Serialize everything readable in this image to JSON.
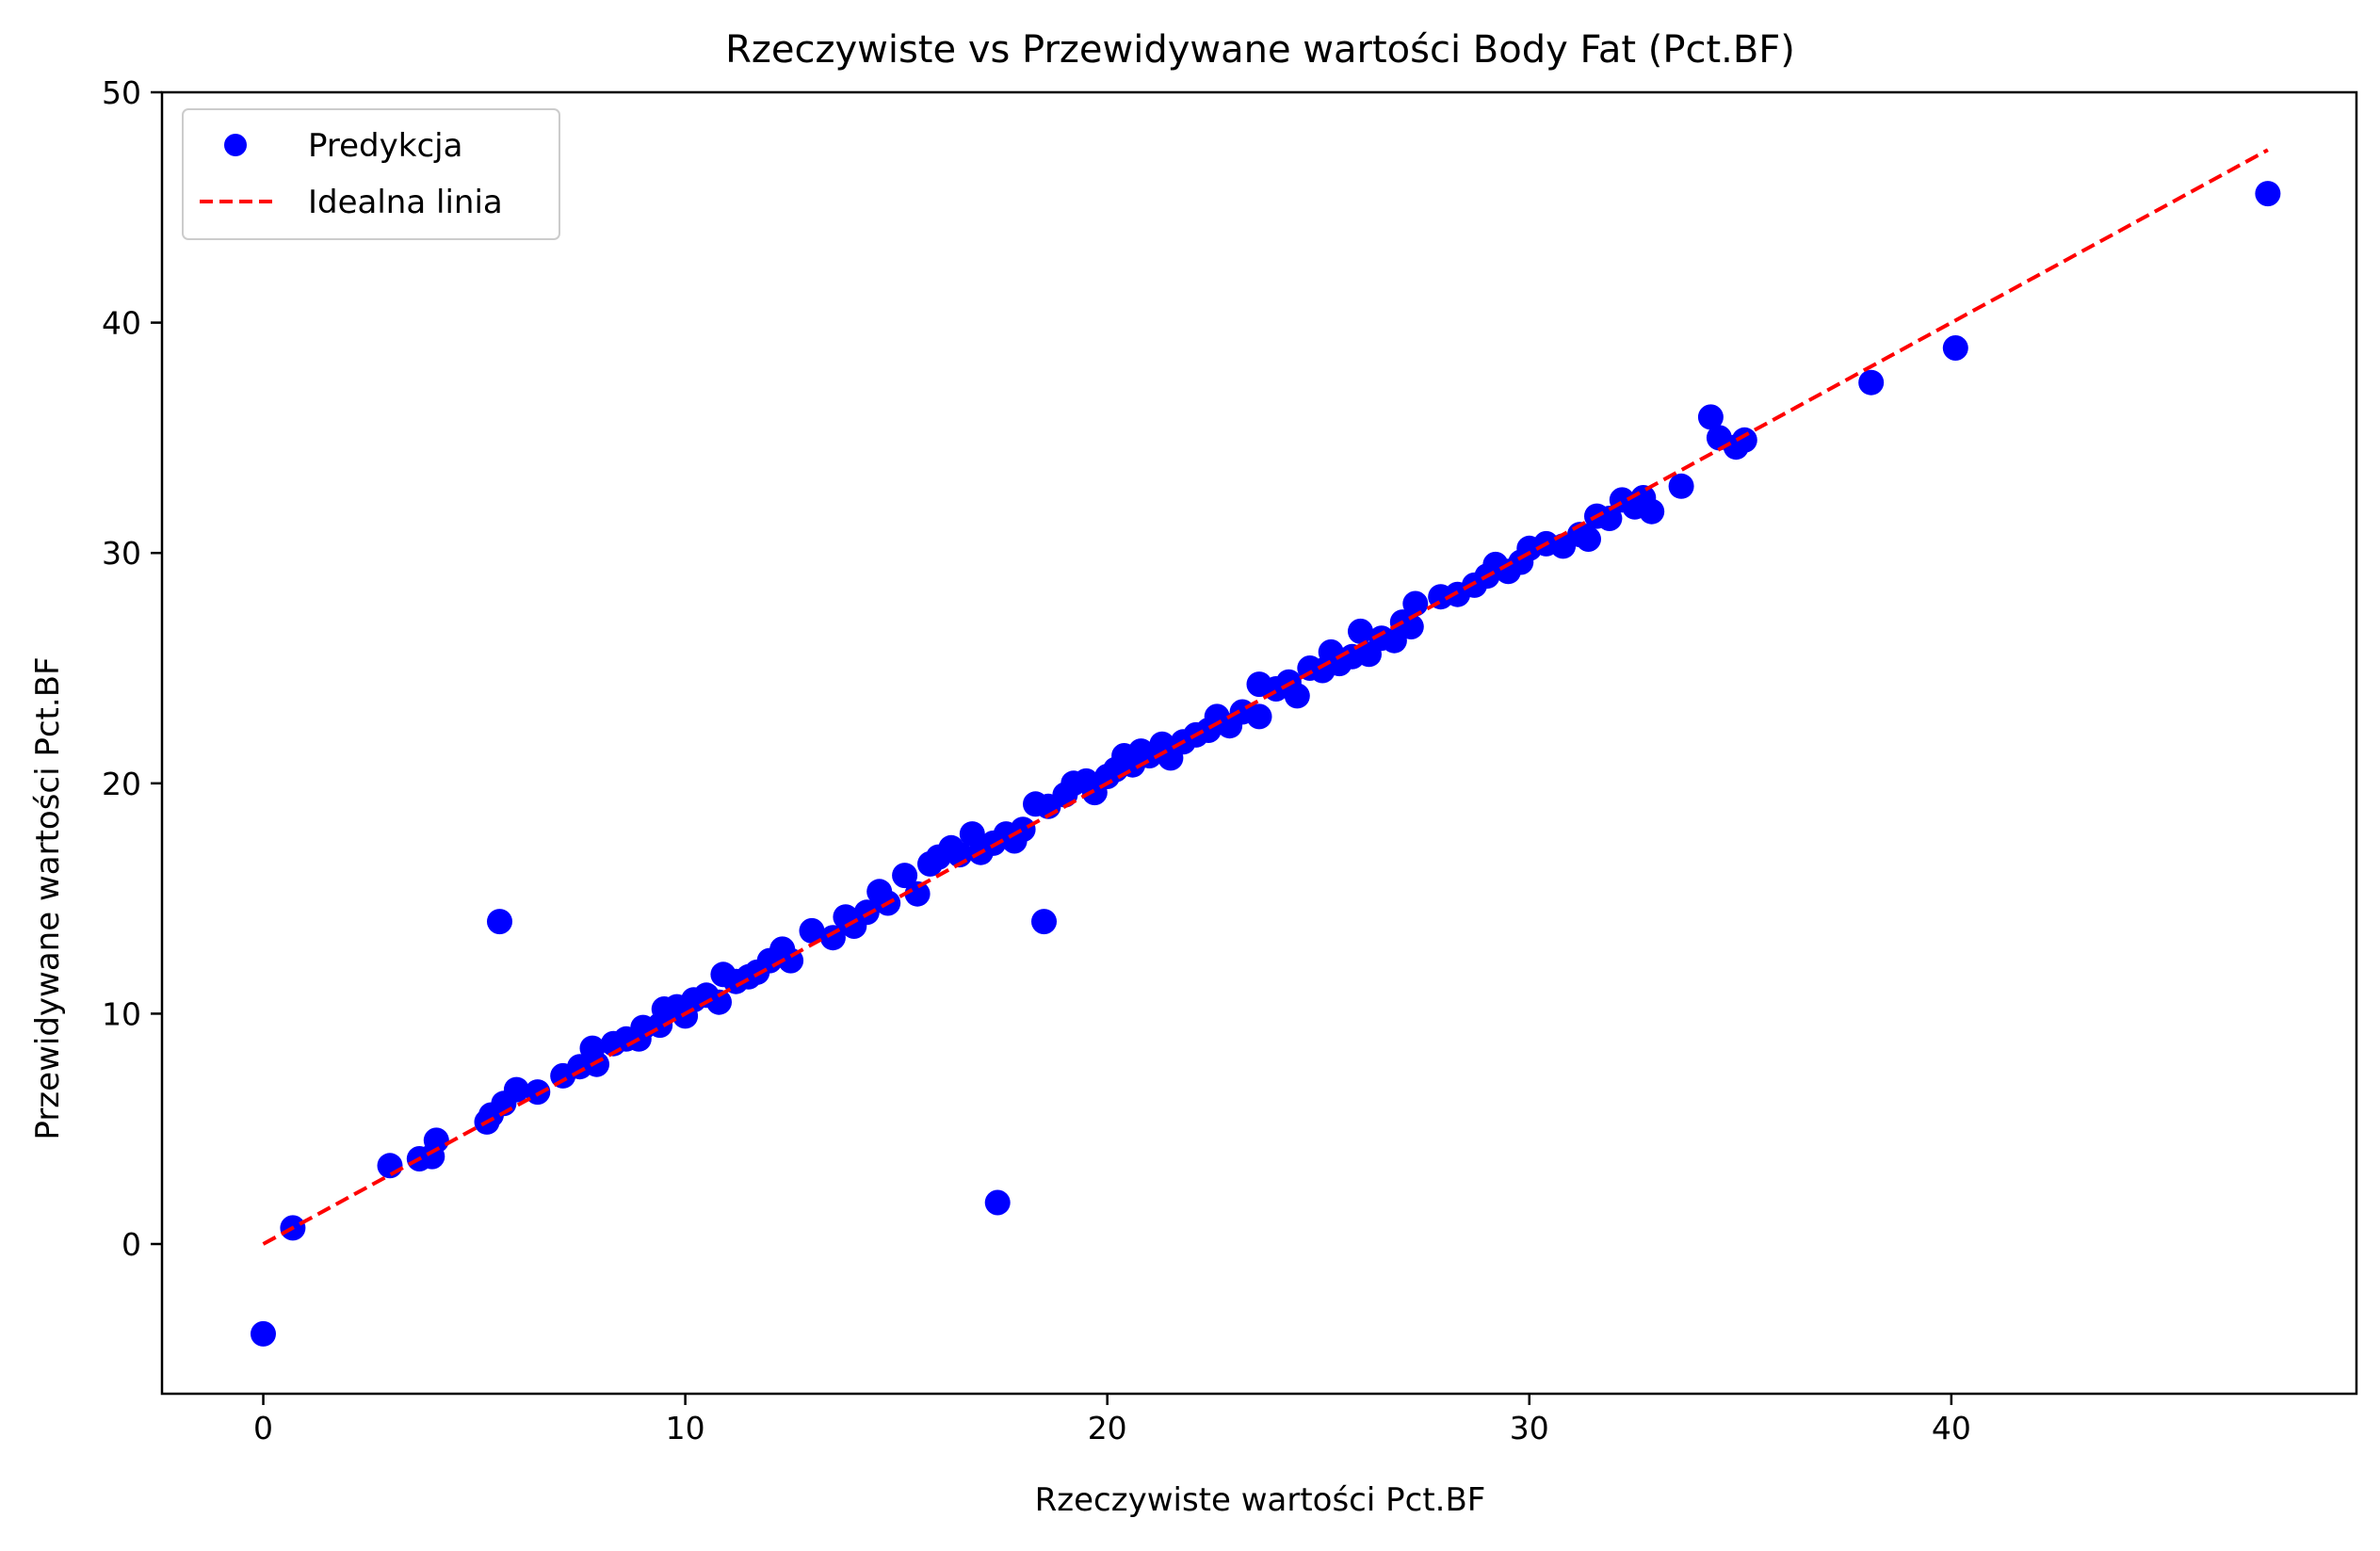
{
  "chart_data": {
    "type": "scatter",
    "title": "Rzeczywiste vs Przewidywane wartości Body Fat (Pct.BF)",
    "xlabel": "Rzeczywiste wartości Pct.BF",
    "ylabel": "Przewidywane wartości Pct.BF",
    "xlim": [
      -2.4,
      49.6
    ],
    "ylim": [
      -6.5,
      50
    ],
    "xticks": [
      0,
      10,
      20,
      30,
      40
    ],
    "yticks": [
      0,
      10,
      20,
      30,
      40,
      50
    ],
    "legend": {
      "position": "top-left",
      "entries": [
        "Predykcja",
        "Idealna linia"
      ]
    },
    "grid": false,
    "series": [
      {
        "name": "Predykcja",
        "kind": "scatter",
        "color": "#0000ff",
        "points": [
          [
            0.0,
            -3.9
          ],
          [
            0.7,
            0.7
          ],
          [
            3.0,
            3.4
          ],
          [
            3.7,
            3.7
          ],
          [
            4.0,
            3.8
          ],
          [
            4.1,
            4.5
          ],
          [
            5.3,
            5.3
          ],
          [
            5.4,
            5.6
          ],
          [
            5.7,
            6.1
          ],
          [
            6.0,
            6.7
          ],
          [
            6.5,
            6.6
          ],
          [
            7.1,
            7.3
          ],
          [
            7.5,
            7.7
          ],
          [
            7.8,
            8.5
          ],
          [
            7.9,
            7.8
          ],
          [
            8.3,
            8.7
          ],
          [
            8.6,
            8.9
          ],
          [
            8.9,
            8.9
          ],
          [
            9.0,
            9.4
          ],
          [
            9.4,
            9.5
          ],
          [
            9.5,
            10.2
          ],
          [
            9.8,
            10.3
          ],
          [
            10.0,
            9.9
          ],
          [
            10.2,
            10.6
          ],
          [
            10.5,
            10.8
          ],
          [
            10.8,
            10.5
          ],
          [
            10.9,
            11.7
          ],
          [
            11.2,
            11.4
          ],
          [
            11.5,
            11.6
          ],
          [
            11.7,
            11.8
          ],
          [
            12.0,
            12.3
          ],
          [
            12.3,
            12.8
          ],
          [
            12.5,
            12.3
          ],
          [
            13.0,
            13.6
          ],
          [
            13.5,
            13.3
          ],
          [
            13.8,
            14.2
          ],
          [
            14.0,
            13.8
          ],
          [
            14.3,
            14.4
          ],
          [
            14.6,
            15.3
          ],
          [
            14.8,
            14.8
          ],
          [
            15.2,
            16.0
          ],
          [
            15.5,
            15.2
          ],
          [
            15.8,
            16.5
          ],
          [
            16.0,
            16.8
          ],
          [
            16.3,
            17.2
          ],
          [
            16.5,
            16.9
          ],
          [
            16.8,
            17.8
          ],
          [
            17.0,
            17.0
          ],
          [
            17.3,
            17.4
          ],
          [
            17.4,
            1.8
          ],
          [
            17.6,
            17.8
          ],
          [
            17.8,
            17.5
          ],
          [
            18.0,
            18.0
          ],
          [
            18.3,
            19.1
          ],
          [
            18.5,
            14.0
          ],
          [
            18.6,
            19.0
          ],
          [
            19.0,
            19.5
          ],
          [
            19.2,
            20.0
          ],
          [
            19.5,
            20.1
          ],
          [
            19.7,
            19.6
          ],
          [
            20.0,
            20.3
          ],
          [
            20.2,
            20.6
          ],
          [
            20.4,
            21.2
          ],
          [
            20.6,
            20.8
          ],
          [
            20.8,
            21.4
          ],
          [
            21.0,
            21.2
          ],
          [
            21.3,
            21.7
          ],
          [
            21.5,
            21.1
          ],
          [
            21.8,
            21.8
          ],
          [
            22.1,
            22.1
          ],
          [
            22.4,
            22.3
          ],
          [
            22.6,
            22.9
          ],
          [
            22.9,
            22.5
          ],
          [
            23.2,
            23.1
          ],
          [
            23.6,
            24.3
          ],
          [
            23.6,
            22.9
          ],
          [
            24.0,
            24.1
          ],
          [
            24.3,
            24.4
          ],
          [
            24.5,
            23.8
          ],
          [
            24.8,
            25.0
          ],
          [
            25.1,
            24.9
          ],
          [
            25.3,
            25.7
          ],
          [
            25.5,
            25.2
          ],
          [
            25.8,
            25.5
          ],
          [
            26.0,
            26.6
          ],
          [
            26.2,
            25.6
          ],
          [
            26.5,
            26.3
          ],
          [
            26.8,
            26.2
          ],
          [
            27.0,
            27.0
          ],
          [
            27.2,
            26.8
          ],
          [
            27.3,
            27.8
          ],
          [
            27.9,
            28.1
          ],
          [
            28.3,
            28.2
          ],
          [
            28.7,
            28.6
          ],
          [
            29.0,
            29.0
          ],
          [
            29.2,
            29.5
          ],
          [
            29.5,
            29.2
          ],
          [
            29.8,
            29.6
          ],
          [
            30.0,
            30.2
          ],
          [
            30.4,
            30.4
          ],
          [
            30.8,
            30.3
          ],
          [
            31.2,
            30.8
          ],
          [
            31.4,
            30.6
          ],
          [
            31.6,
            31.6
          ],
          [
            31.9,
            31.5
          ],
          [
            32.2,
            32.3
          ],
          [
            32.5,
            32.0
          ],
          [
            32.7,
            32.4
          ],
          [
            32.9,
            31.8
          ],
          [
            33.6,
            32.9
          ],
          [
            34.3,
            35.9
          ],
          [
            34.5,
            35.0
          ],
          [
            34.9,
            34.6
          ],
          [
            35.1,
            34.9
          ],
          [
            38.1,
            37.4
          ],
          [
            40.1,
            38.9
          ],
          [
            47.5,
            45.6
          ],
          [
            5.6,
            14.0
          ]
        ]
      },
      {
        "name": "Idealna linia",
        "kind": "line",
        "style": "dashed",
        "color": "#ff0000",
        "x": [
          0.0,
          47.5
        ],
        "y": [
          0.0,
          47.5
        ]
      }
    ]
  }
}
